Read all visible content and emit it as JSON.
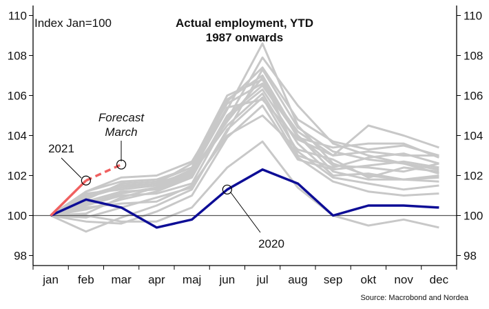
{
  "colors": {
    "history": "#c8c8c8",
    "y2020": "#0d0d96",
    "y2021": "#f06060",
    "baseline": "#555555",
    "axis": "#000000"
  },
  "chart_data": {
    "type": "line",
    "title": "Actual employment, YTD",
    "subtitle": "1987 onwards",
    "index_label": "Index Jan=100",
    "source": "Source: Macrobond and Nordea",
    "ylim": [
      97.5,
      110.5
    ],
    "y_ticks": [
      98,
      100,
      102,
      104,
      106,
      108,
      110
    ],
    "categories": [
      "jan",
      "feb",
      "mar",
      "apr",
      "maj",
      "jun",
      "jul",
      "aug",
      "sep",
      "okt",
      "nov",
      "dec"
    ],
    "baseline": 100,
    "history_series": [
      [
        100,
        101.0,
        101.5,
        101.6,
        102.2,
        105.3,
        108.6,
        104.5,
        102.6,
        102.0,
        101.8,
        101.7
      ],
      [
        100,
        100.5,
        101.0,
        101.1,
        101.6,
        104.8,
        107.9,
        105.5,
        103.6,
        103.0,
        102.6,
        102.3
      ],
      [
        100,
        99.9,
        100.4,
        100.9,
        101.4,
        104.2,
        107.3,
        104.4,
        103.2,
        102.8,
        102.6,
        102.1
      ],
      [
        100,
        101.2,
        101.7,
        101.8,
        102.4,
        105.8,
        107.0,
        104.0,
        102.2,
        101.8,
        101.8,
        101.9
      ],
      [
        100,
        100.9,
        101.4,
        101.6,
        102.6,
        106.0,
        106.8,
        103.9,
        103.4,
        103.6,
        103.6,
        102.9
      ],
      [
        100,
        101.2,
        101.9,
        102.0,
        102.7,
        105.6,
        106.6,
        104.2,
        103.0,
        104.5,
        104.0,
        103.4
      ],
      [
        100,
        100.3,
        100.8,
        101.2,
        101.9,
        105.0,
        106.5,
        104.0,
        102.5,
        102.4,
        102.2,
        102.6
      ],
      [
        100,
        100.7,
        101.2,
        101.3,
        102.0,
        104.9,
        106.3,
        103.6,
        102.0,
        102.1,
        101.8,
        102.0
      ],
      [
        100,
        100.1,
        100.9,
        101.4,
        102.1,
        104.5,
        106.1,
        103.2,
        101.9,
        101.6,
        101.3,
        101.5
      ],
      [
        100,
        99.2,
        99.9,
        100.5,
        101.3,
        104.3,
        105.9,
        102.9,
        101.7,
        101.2,
        101.0,
        101.1
      ],
      [
        100,
        100.8,
        101.6,
        101.7,
        102.4,
        105.4,
        105.8,
        103.8,
        103.0,
        103.2,
        103.0,
        103.0
      ],
      [
        100,
        99.7,
        99.6,
        100.2,
        101.0,
        103.9,
        105.5,
        102.8,
        102.3,
        102.5,
        102.7,
        102.4
      ],
      [
        100,
        100.4,
        100.6,
        100.7,
        101.5,
        104.0,
        105.0,
        103.3,
        102.8,
        101.9,
        102.4,
        102.2
      ],
      [
        100,
        100.0,
        99.7,
        99.7,
        100.4,
        102.4,
        103.7,
        101.4,
        100.0,
        99.5,
        99.8,
        99.4
      ],
      [
        100,
        101.1,
        101.3,
        101.5,
        102.3,
        105.7,
        107.4,
        104.8,
        103.7,
        103.3,
        103.5,
        103.0
      ],
      [
        100,
        100.6,
        101.1,
        101.4,
        102.2,
        104.7,
        106.9,
        103.0,
        102.4,
        102.9,
        103.1,
        102.6
      ]
    ],
    "series_2020": {
      "label": "2020",
      "values": [
        100,
        100.8,
        100.4,
        99.4,
        99.8,
        101.3,
        102.3,
        101.6,
        100.0,
        100.5,
        100.5,
        100.4
      ]
    },
    "series_2021": {
      "label": "2021",
      "actual": [
        100,
        101.75
      ],
      "forecast_to": 102.55,
      "forecast_label_1": "Forecast",
      "forecast_label_2": "March"
    }
  }
}
